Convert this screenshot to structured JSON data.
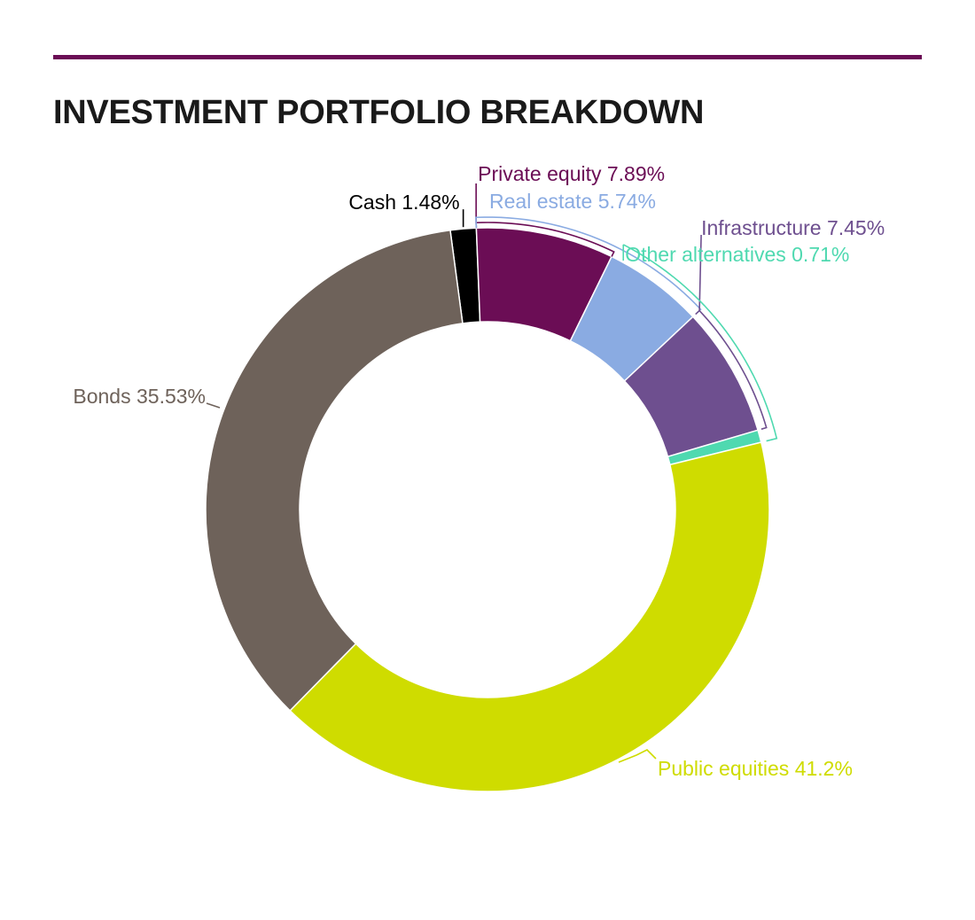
{
  "title": "INVESTMENT PORTFOLIO BREAKDOWN",
  "colors": {
    "rule": "#6b0d55",
    "title": "#1a1a1a",
    "separator": "#ffffff"
  },
  "chart_data": {
    "type": "pie",
    "variant": "donut",
    "title": "INVESTMENT PORTFOLIO BREAKDOWN",
    "unit": "%",
    "slices": [
      {
        "id": "cash",
        "label": "Cash 1.48%",
        "value": 1.48,
        "color": "#000000"
      },
      {
        "id": "private-equity",
        "label": "Private equity 7.89%",
        "value": 7.89,
        "color": "#6b0d55"
      },
      {
        "id": "real-estate",
        "label": "Real estate 5.74%",
        "value": 5.74,
        "color": "#8aabe2"
      },
      {
        "id": "infrastructure",
        "label": "Infrastructure 7.45%",
        "value": 7.45,
        "color": "#6e4f8f"
      },
      {
        "id": "other-alternatives",
        "label": "Other alternatives 0.71%",
        "value": 0.71,
        "color": "#4fd9b0"
      },
      {
        "id": "public-equities",
        "label": "Public equities 41.2%",
        "value": 41.2,
        "color": "#cfdc00"
      },
      {
        "id": "bonds",
        "label": "Bonds 35.53%",
        "value": 35.53,
        "color": "#6e625a"
      }
    ]
  }
}
